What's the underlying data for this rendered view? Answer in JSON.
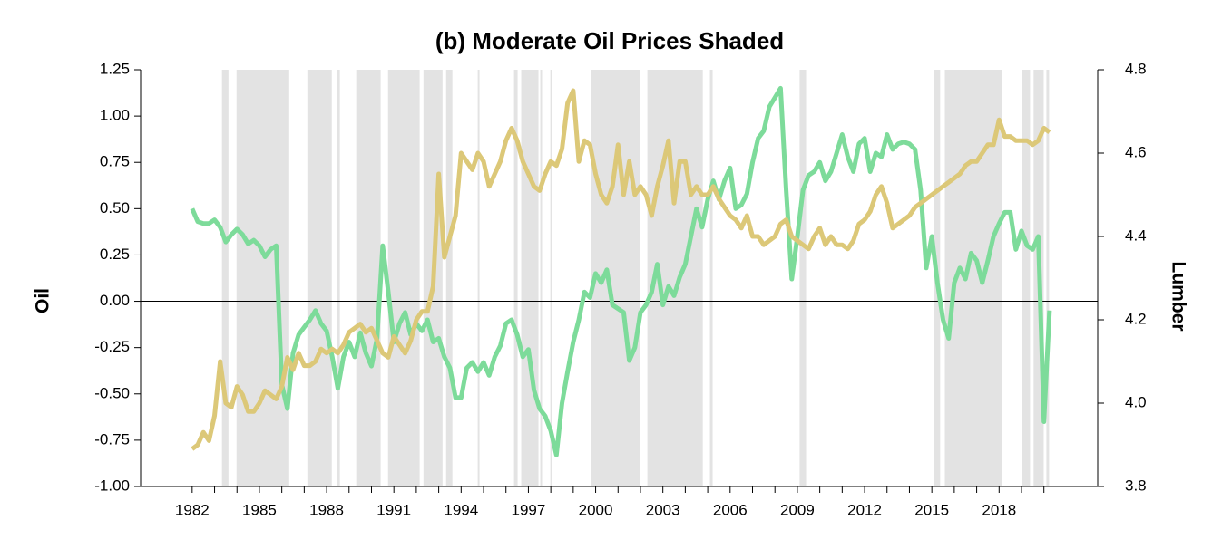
{
  "chart_data": {
    "type": "line",
    "title": "(b) Moderate Oil Prices Shaded",
    "y_label": "Oil",
    "y2_label": "Lumber",
    "xlim": [
      1979.7,
      2022.4
    ],
    "ylim": [
      -1,
      1.25
    ],
    "y2lim": [
      3.8,
      4.8
    ],
    "xticks": [
      1982,
      1985,
      1988,
      1991,
      1994,
      1997,
      2000,
      2003,
      2006,
      2009,
      2012,
      2015,
      2018
    ],
    "xminor": [
      1983,
      1984,
      1986,
      1987,
      1989,
      1990,
      1992,
      1993,
      1995,
      1996,
      1998,
      1999,
      2001,
      2002,
      2004,
      2005,
      2007,
      2008,
      2010,
      2011,
      2013,
      2014,
      2016,
      2017,
      2019,
      2020
    ],
    "yticks": [
      1.25,
      {
        "value": 1,
        "label": "1.00"
      },
      0.75,
      {
        "value": 0.5,
        "label": "0.50"
      },
      0.25,
      {
        "value": 0,
        "label": "0.00"
      },
      -0.25,
      {
        "value": -0.5,
        "label": "-0.50"
      },
      -0.75,
      {
        "value": -1,
        "label": "-1.00"
      }
    ],
    "y2ticks": [
      4.8,
      4.6,
      4.4,
      4.2,
      {
        "value": 4,
        "label": "4.0"
      },
      3.8
    ],
    "hline": 0,
    "shade_color": "#e3e3e3",
    "shaded": [
      [
        1983.33,
        1983.62
      ],
      [
        1983.98,
        1986.33
      ],
      [
        1987.14,
        1988.23
      ],
      [
        1988.47,
        1988.59
      ],
      [
        1989.32,
        1990.41
      ],
      [
        1990.74,
        1992.15
      ],
      [
        1992.32,
        1993.17
      ],
      [
        1993.33,
        1993.61
      ],
      [
        1994.74,
        1994.82
      ],
      [
        1996.36,
        1996.52
      ],
      [
        1996.68,
        1997.45
      ],
      [
        1997.53,
        1997.61
      ],
      [
        1997.98,
        1998.06
      ],
      [
        1999.8,
        2001.98
      ],
      [
        2002.31,
        2004.78
      ],
      [
        2005.1,
        2005.22
      ],
      [
        2009.1,
        2009.39
      ],
      [
        2015.09,
        2015.37
      ],
      [
        2015.58,
        2018.12
      ],
      [
        2019.01,
        2019.38
      ],
      [
        2019.54,
        2019.99
      ],
      [
        2020.11,
        2020.23
      ]
    ],
    "x": [
      1982,
      1982.25,
      1982.5,
      1982.75,
      1983,
      1983.25,
      1983.5,
      1983.75,
      1984,
      1984.25,
      1984.5,
      1984.75,
      1985,
      1985.25,
      1985.5,
      1985.75,
      1986,
      1986.25,
      1986.5,
      1986.75,
      1987,
      1987.25,
      1987.5,
      1987.75,
      1988,
      1988.25,
      1988.5,
      1988.75,
      1989,
      1989.25,
      1989.5,
      1989.75,
      1990,
      1990.25,
      1990.5,
      1990.75,
      1991,
      1991.25,
      1991.5,
      1991.75,
      1992,
      1992.25,
      1992.5,
      1992.75,
      1993,
      1993.25,
      1993.5,
      1993.75,
      1994,
      1994.25,
      1994.5,
      1994.75,
      1995,
      1995.25,
      1995.5,
      1995.75,
      1996,
      1996.25,
      1996.5,
      1996.75,
      1997,
      1997.25,
      1997.5,
      1997.75,
      1998,
      1998.25,
      1998.5,
      1998.75,
      1999,
      1999.25,
      1999.5,
      1999.75,
      2000,
      2000.25,
      2000.5,
      2000.75,
      2001,
      2001.25,
      2001.5,
      2001.75,
      2002,
      2002.25,
      2002.5,
      2002.75,
      2003,
      2003.25,
      2003.5,
      2003.75,
      2004,
      2004.25,
      2004.5,
      2004.75,
      2005,
      2005.25,
      2005.5,
      2005.75,
      2006,
      2006.25,
      2006.5,
      2006.75,
      2007,
      2007.25,
      2007.5,
      2007.75,
      2008,
      2008.25,
      2008.5,
      2008.75,
      2009,
      2009.25,
      2009.5,
      2009.75,
      2010,
      2010.25,
      2010.5,
      2010.75,
      2011,
      2011.25,
      2011.5,
      2011.75,
      2012,
      2012.25,
      2012.5,
      2012.75,
      2013,
      2013.25,
      2013.5,
      2013.75,
      2014,
      2014.25,
      2014.5,
      2014.75,
      2015,
      2015.25,
      2015.5,
      2015.75,
      2016,
      2016.25,
      2016.5,
      2016.75,
      2017,
      2017.25,
      2017.5,
      2017.75,
      2018,
      2018.25,
      2018.5,
      2018.75,
      2019,
      2019.25,
      2019.5,
      2019.75,
      2020,
      2020.25
    ],
    "series": [
      {
        "name": "Oil",
        "color": "#7ddb9a",
        "values": [
          0.5,
          0.43,
          0.42,
          0.42,
          0.44,
          0.4,
          0.32,
          0.36,
          0.39,
          0.36,
          0.31,
          0.33,
          0.3,
          0.24,
          0.28,
          0.3,
          -0.45,
          -0.58,
          -0.28,
          -0.18,
          -0.14,
          -0.1,
          -0.05,
          -0.12,
          -0.16,
          -0.3,
          -0.47,
          -0.3,
          -0.22,
          -0.3,
          -0.17,
          -0.28,
          -0.35,
          -0.2,
          0.3,
          0.05,
          -0.22,
          -0.12,
          -0.06,
          -0.18,
          -0.12,
          -0.16,
          -0.1,
          -0.22,
          -0.2,
          -0.3,
          -0.36,
          -0.52,
          -0.52,
          -0.36,
          -0.33,
          -0.38,
          -0.33,
          -0.4,
          -0.3,
          -0.24,
          -0.12,
          -0.1,
          -0.18,
          -0.3,
          -0.26,
          -0.48,
          -0.58,
          -0.62,
          -0.7,
          -0.83,
          -0.55,
          -0.38,
          -0.22,
          -0.1,
          0.05,
          0.02,
          0.15,
          0.1,
          0.17,
          -0.02,
          -0.04,
          -0.06,
          -0.32,
          -0.25,
          -0.06,
          -0.02,
          0.05,
          0.2,
          -0.02,
          0.08,
          0.03,
          0.13,
          0.2,
          0.35,
          0.5,
          0.4,
          0.55,
          0.65,
          0.55,
          0.65,
          0.72,
          0.5,
          0.52,
          0.58,
          0.75,
          0.88,
          0.92,
          1.05,
          1.1,
          1.15,
          0.6,
          0.12,
          0.35,
          0.6,
          0.68,
          0.7,
          0.75,
          0.65,
          0.7,
          0.8,
          0.9,
          0.78,
          0.7,
          0.85,
          0.88,
          0.7,
          0.8,
          0.78,
          0.9,
          0.82,
          0.85,
          0.86,
          0.85,
          0.82,
          0.6,
          0.18,
          0.35,
          0.1,
          -0.1,
          -0.2,
          0.1,
          0.18,
          0.12,
          0.26,
          0.22,
          0.1,
          0.22,
          0.35,
          0.42,
          0.48,
          0.48,
          0.28,
          0.38,
          0.3,
          0.28,
          0.35,
          -0.65,
          -0.05
        ]
      },
      {
        "name": "Lumber",
        "color": "#dcc878",
        "axis": "y2",
        "values": [
          3.89,
          3.9,
          3.93,
          3.91,
          3.97,
          4.1,
          4,
          3.99,
          4.04,
          4.02,
          3.98,
          3.98,
          4,
          4.03,
          4.02,
          4.01,
          4.04,
          4.11,
          4.08,
          4.12,
          4.09,
          4.09,
          4.1,
          4.13,
          4.12,
          4.13,
          4.12,
          4.14,
          4.17,
          4.18,
          4.19,
          4.17,
          4.18,
          4.15,
          4.12,
          4.11,
          4.16,
          4.14,
          4.12,
          4.15,
          4.2,
          4.22,
          4.22,
          4.28,
          4.55,
          4.35,
          4.4,
          4.45,
          4.6,
          4.58,
          4.56,
          4.6,
          4.58,
          4.52,
          4.55,
          4.58,
          4.63,
          4.66,
          4.63,
          4.58,
          4.55,
          4.52,
          4.51,
          4.55,
          4.58,
          4.57,
          4.61,
          4.72,
          4.75,
          4.58,
          4.63,
          4.62,
          4.55,
          4.5,
          4.48,
          4.52,
          4.62,
          4.5,
          4.58,
          4.5,
          4.52,
          4.5,
          4.45,
          4.52,
          4.57,
          4.63,
          4.48,
          4.58,
          4.58,
          4.5,
          4.52,
          4.5,
          4.5,
          4.52,
          4.49,
          4.47,
          4.45,
          4.44,
          4.42,
          4.45,
          4.4,
          4.4,
          4.38,
          4.39,
          4.4,
          4.43,
          4.44,
          4.4,
          4.39,
          4.38,
          4.37,
          4.4,
          4.42,
          4.38,
          4.4,
          4.38,
          4.38,
          4.37,
          4.39,
          4.43,
          4.44,
          4.46,
          4.5,
          4.52,
          4.48,
          4.42,
          4.43,
          4.44,
          4.45,
          4.47,
          4.48,
          4.49,
          4.5,
          4.51,
          4.52,
          4.53,
          4.54,
          4.55,
          4.57,
          4.58,
          4.58,
          4.6,
          4.62,
          4.62,
          4.68,
          4.64,
          4.64,
          4.63,
          4.63,
          4.63,
          4.62,
          4.63,
          4.66,
          4.65
        ]
      }
    ]
  }
}
